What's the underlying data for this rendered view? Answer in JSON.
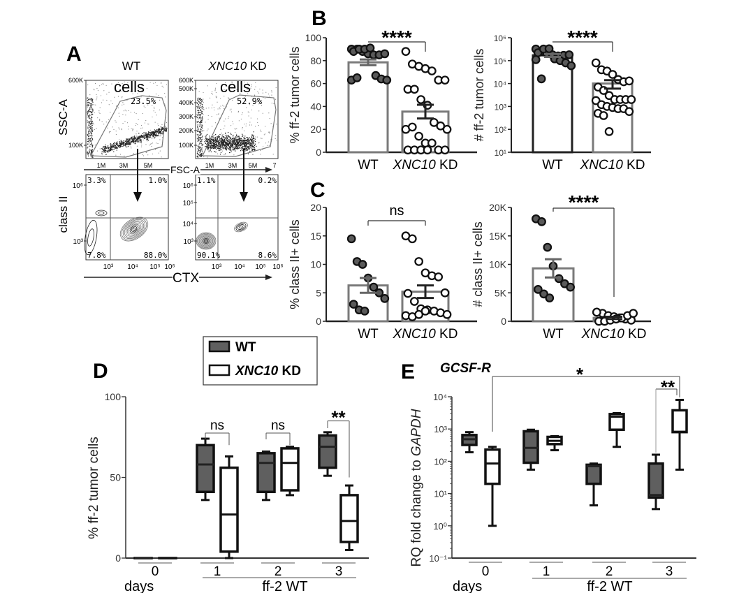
{
  "figure": {
    "panel_letters": [
      "A",
      "B",
      "C",
      "D",
      "E"
    ]
  },
  "panel_a": {
    "type": "flow-cytometry",
    "samples": [
      "WT",
      "XNC10 KD"
    ],
    "gate_label": "cells",
    "gate_percent": [
      "23.5%",
      "52.9%"
    ],
    "top_ylabel": "SSC-A",
    "top_xlabel": "FSC-A",
    "top_yticks": [
      [
        "600K",
        "100K"
      ],
      [
        "600K",
        "500K",
        "400K",
        "300K",
        "200K",
        "100K"
      ]
    ],
    "top_xticks": [
      [
        "1M",
        "3M",
        "5M"
      ],
      [
        "1M",
        "3M",
        "5M",
        "7"
      ]
    ],
    "bottom_ylabel": "class II",
    "bottom_xlabel": "CTX",
    "bottom_yticks": [
      [
        "10⁶",
        "10³"
      ],
      [
        "10⁶",
        "10⁵",
        "10⁴",
        "10³"
      ]
    ],
    "bottom_xticks": [
      [
        "10³",
        "10⁴",
        "10⁵",
        "10⁶"
      ],
      [
        "10³",
        "10⁴",
        "10⁵",
        "10⁶"
      ]
    ],
    "quadrants": [
      {
        "ul": "3.3%",
        "ur": "1.0%",
        "ll": "7.8%",
        "lr": "88.0%"
      },
      {
        "ul": "1.1%",
        "ur": "0.2%",
        "ll": "90.1%",
        "lr": "8.6%"
      }
    ]
  },
  "chart_data": [
    {
      "id": "B-left",
      "panel": "B",
      "type": "bar",
      "ylabel": "% ff-2 tumor cells",
      "ylim": [
        0,
        100
      ],
      "yscale": "linear",
      "yticks": [
        0,
        20,
        40,
        60,
        80,
        100
      ],
      "ytick_labels": [
        "0",
        "20",
        "40",
        "60",
        "80",
        "100"
      ],
      "categories": [
        "WT",
        "XNC10 KD"
      ],
      "series": [
        {
          "mean": 78.5,
          "sem": 2.5,
          "bar_color": "#7a7a7a",
          "dot_fill": "#5a5a5a",
          "points": [
            90,
            90,
            88,
            86,
            85,
            85,
            86,
            88,
            90,
            90,
            91,
            67,
            64,
            63,
            63,
            65
          ]
        },
        {
          "mean": 35.5,
          "sem": 6,
          "bar_color": "#7a7a7a",
          "dot_fill": "#ffffff",
          "points": [
            88,
            77,
            75,
            73,
            71,
            63,
            63,
            55,
            55,
            46,
            41,
            26,
            23,
            20,
            20,
            22,
            14,
            8,
            8,
            2,
            2,
            2,
            2,
            2,
            2
          ]
        }
      ],
      "significance": {
        "label": "****",
        "between": [
          "WT",
          "XNC10 KD"
        ]
      }
    },
    {
      "id": "B-right",
      "panel": "B",
      "type": "bar",
      "ylabel": "# ff-2 tumor cells",
      "ylim": [
        10,
        1000000
      ],
      "yscale": "log",
      "yticks": [
        10,
        100,
        1000,
        10000,
        100000,
        1000000
      ],
      "ytick_labels": [
        "10¹",
        "10²",
        "10³",
        "10⁴",
        "10⁵",
        "10⁶"
      ],
      "categories": [
        "WT",
        "XNC10 KD"
      ],
      "series": [
        {
          "mean": 170000,
          "sem": 25000,
          "bar_color": "#222222",
          "dot_fill": "#5a5a5a",
          "points": [
            320000,
            250000,
            210000,
            180000,
            160000,
            170000,
            180000,
            220000,
            320000,
            330000,
            120000,
            100000,
            80000,
            60000,
            110000,
            16000
          ]
        },
        {
          "mean": 10000,
          "sem": 4000,
          "bar_color": "#7a7a7a",
          "dot_fill": "#ffffff",
          "points": [
            80000,
            40000,
            35000,
            25000,
            15000,
            12000,
            13000,
            7000,
            5000,
            3000,
            2000,
            2000,
            2000,
            2000,
            1800,
            1200,
            1000,
            900,
            800,
            800,
            600,
            500,
            400,
            80
          ]
        }
      ],
      "significance": {
        "label": "****",
        "between": [
          "WT",
          "XNC10 KD"
        ]
      }
    },
    {
      "id": "C-left",
      "panel": "C",
      "type": "bar",
      "ylabel": "% class II+ cells",
      "ylim": [
        0,
        20
      ],
      "yscale": "linear",
      "yticks": [
        0,
        5,
        10,
        15,
        20
      ],
      "ytick_labels": [
        "0",
        "5",
        "10",
        "15",
        "20"
      ],
      "categories": [
        "WT",
        "XNC10 KD"
      ],
      "series": [
        {
          "mean": 6.3,
          "sem": 1.3,
          "bar_color": "#7a7a7a",
          "dot_fill": "#5a5a5a",
          "points": [
            14.5,
            10.5,
            10,
            7.6,
            6,
            5,
            4,
            3,
            2,
            1.8
          ]
        },
        {
          "mean": 5.2,
          "sem": 1.1,
          "bar_color": "#7a7a7a",
          "dot_fill": "#ffffff",
          "points": [
            15,
            14.5,
            10.5,
            8.5,
            8,
            7.8,
            5,
            4.9,
            3.5,
            2.2,
            2,
            1.8,
            1.5,
            1.2,
            1,
            0.8,
            1.2,
            1.8
          ]
        }
      ],
      "significance": {
        "label": "ns",
        "between": [
          "WT",
          "XNC10 KD"
        ]
      }
    },
    {
      "id": "C-right",
      "panel": "C",
      "type": "bar",
      "ylabel": "# class II+ cells",
      "ylim": [
        0,
        20000
      ],
      "yscale": "linear",
      "yticks": [
        0,
        5000,
        10000,
        15000,
        20000
      ],
      "ytick_labels": [
        "0",
        "5K",
        "10K",
        "15K",
        "20K"
      ],
      "categories": [
        "WT",
        "XNC10 KD"
      ],
      "series": [
        {
          "mean": 9300,
          "sem": 1600,
          "bar_color": "#7a7a7a",
          "dot_fill": "#5a5a5a",
          "points": [
            18000,
            17500,
            13000,
            9700,
            7500,
            6600,
            6000,
            5600,
            4800,
            4100
          ]
        },
        {
          "mean": 600,
          "sem": 200,
          "bar_color": "#7a7a7a",
          "dot_fill": "#ffffff",
          "points": [
            1600,
            1400,
            1000,
            800,
            600,
            400,
            200,
            0,
            0,
            200,
            400,
            600,
            1000,
            1400,
            1600
          ]
        }
      ],
      "significance": {
        "label": "****",
        "between": [
          "WT",
          "XNC10 KD"
        ]
      }
    },
    {
      "id": "D",
      "panel": "D",
      "type": "box",
      "ylabel": "% ff-2 tumor cells",
      "ylim": [
        0,
        100
      ],
      "yscale": "linear",
      "yticks": [
        0,
        50,
        100
      ],
      "ytick_labels": [
        "0",
        "50",
        "100"
      ],
      "categories": [
        "0",
        "1",
        "2",
        "3"
      ],
      "xlabel_left": "days",
      "xlabel_group": "ff-2 WT",
      "legend": {
        "position": "top",
        "entries": [
          {
            "label": "WT",
            "fill": "#5f5f5f"
          },
          {
            "label": "XNC10 KD",
            "fill": "#ffffff"
          }
        ]
      },
      "series": [
        {
          "name": "WT",
          "fill": "#5f5f5f",
          "boxes": [
            {
              "min": 0,
              "q1": 0,
              "median": 0,
              "q3": 0,
              "max": 0
            },
            {
              "min": 36,
              "q1": 41,
              "median": 58,
              "q3": 70,
              "max": 74
            },
            {
              "min": 36,
              "q1": 41,
              "median": 59,
              "q3": 65,
              "max": 66
            },
            {
              "min": 51,
              "q1": 56,
              "median": 69,
              "q3": 76,
              "max": 78
            }
          ]
        },
        {
          "name": "XNC10 KD",
          "fill": "#ffffff",
          "boxes": [
            {
              "min": 0,
              "q1": 0,
              "median": 0,
              "q3": 0,
              "max": 0
            },
            {
              "min": 0,
              "q1": 4,
              "median": 27,
              "q3": 56,
              "max": 63
            },
            {
              "min": 39,
              "q1": 42,
              "median": 59,
              "q3": 68,
              "max": 69
            },
            {
              "min": 5,
              "q1": 10,
              "median": 23,
              "q3": 39,
              "max": 45
            }
          ]
        }
      ],
      "significance": [
        {
          "label": "ns",
          "day": "1"
        },
        {
          "label": "ns",
          "day": "2"
        },
        {
          "label": "**",
          "day": "3"
        }
      ]
    },
    {
      "id": "E",
      "panel": "E",
      "type": "box",
      "title": "GCSF-R",
      "ylabel": "RQ fold change to GAPDH",
      "ylim": [
        0.1,
        10000
      ],
      "yscale": "log",
      "yticks": [
        0.1,
        1,
        10,
        100,
        1000,
        10000
      ],
      "ytick_labels": [
        "10⁻¹",
        "10⁰",
        "10¹",
        "10²",
        "10³",
        "10⁴"
      ],
      "categories": [
        "0",
        "1",
        "2",
        "3"
      ],
      "xlabel_left": "days",
      "xlabel_group": "ff-2 WT",
      "series": [
        {
          "name": "WT",
          "fill": "#5f5f5f",
          "boxes": [
            {
              "min": 190,
              "q1": 320,
              "median": 480,
              "q3": 650,
              "max": 800
            },
            {
              "min": 55,
              "q1": 90,
              "median": 260,
              "q3": 850,
              "max": 950
            },
            {
              "min": 4.3,
              "q1": 20,
              "median": 70,
              "q3": 78,
              "max": 85
            },
            {
              "min": 3.3,
              "q1": 7.5,
              "median": 9,
              "q3": 85,
              "max": 160
            }
          ]
        },
        {
          "name": "XNC10 KD",
          "fill": "#ffffff",
          "boxes": [
            {
              "min": 1,
              "q1": 20,
              "median": 85,
              "q3": 230,
              "max": 280
            },
            {
              "min": 220,
              "q1": 340,
              "median": 430,
              "q3": 570,
              "max": 600
            },
            {
              "min": 280,
              "q1": 950,
              "median": 2400,
              "q3": 2900,
              "max": 3100
            },
            {
              "min": 55,
              "q1": 800,
              "median": 820,
              "q3": 3800,
              "max": 8000
            }
          ]
        }
      ],
      "significance": [
        {
          "label": "*",
          "between": [
            "day 0 XNC10 KD",
            "day 3 XNC10 KD"
          ]
        },
        {
          "label": "**",
          "between": [
            "day 3 WT",
            "day 3 XNC10 KD"
          ]
        }
      ]
    }
  ]
}
